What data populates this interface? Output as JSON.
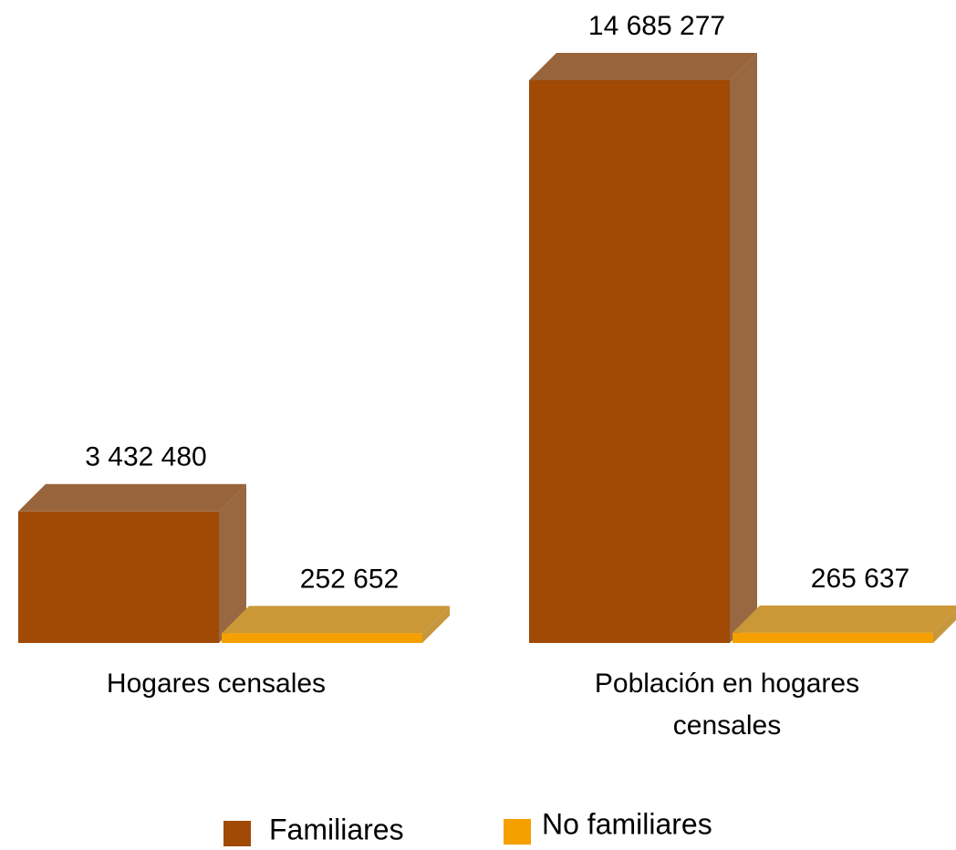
{
  "chart_data": {
    "type": "bar3d",
    "categories": [
      "Hogares censales",
      "Población en hogares censales"
    ],
    "series": [
      {
        "name": "Familiares",
        "color": "#a04a06",
        "values": [
          3432480,
          14685277
        ],
        "value_labels": [
          "3 432 480",
          "14 685 277"
        ]
      },
      {
        "name": "No familiares",
        "color": "#f5a000",
        "values": [
          252652,
          265637
        ],
        "value_labels": [
          "252 652",
          "265 637"
        ]
      }
    ],
    "legend": "bottom"
  }
}
